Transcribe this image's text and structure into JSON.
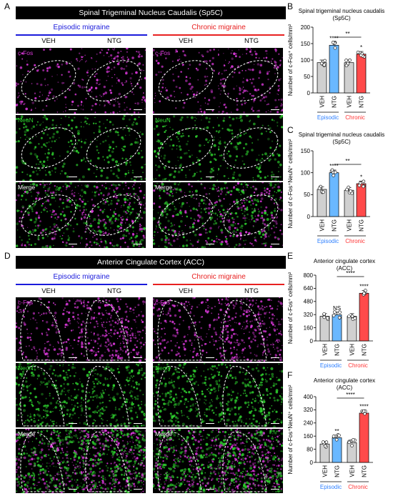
{
  "panels": {
    "A": "A",
    "B": "B",
    "C": "C",
    "D": "D",
    "E": "E",
    "F": "F"
  },
  "colors": {
    "blue": "#2f80ff",
    "red": "#ff3333",
    "episodic_line": "#1a1adb",
    "chronic_line": "#e82020",
    "cfos": "#d938d9",
    "neun": "#2ed12e",
    "veh_bar": "#d0d0d0",
    "ntg_episodic_bar": "#6ab8ff",
    "ntg_chronic_bar": "#ff4a4a"
  },
  "sectionA": {
    "title": "Spinal Trigeminal Nucleus Caudalis (Sp5C)",
    "groups": [
      "Episodic migraine",
      "Chronic migraine"
    ],
    "conditions": [
      "VEH",
      "NTG",
      "VEH",
      "NTG"
    ],
    "rows": [
      "c-Fos",
      "NeuN",
      "Merge"
    ]
  },
  "sectionD": {
    "title": "Anterior Cingulate Cortex (ACC)",
    "groups": [
      "Episodic migraine",
      "Chronic migraine"
    ],
    "conditions": [
      "VEH",
      "NTG",
      "VEH",
      "NTG"
    ],
    "rows": [
      "c-Fos",
      "NeuN",
      "Merge"
    ]
  },
  "chart_data": [
    {
      "panel": "B",
      "type": "bar",
      "title": "Spinal trigeminal nucleus caudalis\n(Sp5C)",
      "ylabel": "Number of c-Fos⁺ cells/mm²",
      "categories": [
        "VEH",
        "NTG",
        "VEH",
        "NTG"
      ],
      "groups": [
        "Episodic",
        "Chronic"
      ],
      "values": [
        92,
        145,
        92,
        118
      ],
      "ylim": [
        0,
        200
      ],
      "yticks": [
        "0",
        "50",
        "100",
        "150",
        "200"
      ],
      "sig_labels": [
        "",
        "****",
        "",
        "*"
      ],
      "bracket": "**"
    },
    {
      "panel": "C",
      "type": "bar",
      "title": "Spinal trigeminal nucleus caudalis\n(Sp5C)",
      "ylabel": "Number of c-Fos⁺NeuN⁺ cells/mm²",
      "categories": [
        "VEH",
        "NTG",
        "VEH",
        "NTG"
      ],
      "groups": [
        "Episodic",
        "Chronic"
      ],
      "values": [
        62,
        100,
        60,
        75
      ],
      "ylim": [
        0,
        150
      ],
      "yticks": [
        "0",
        "50",
        "100",
        "150"
      ],
      "sig_labels": [
        "",
        "****",
        "",
        "*"
      ],
      "bracket": "**"
    },
    {
      "panel": "E",
      "type": "bar",
      "title": "Anterior cingulate cortex\n(ACC)",
      "ylabel": "Number of c-Fos⁺ cells/mm²",
      "categories": [
        "VEH",
        "NTG",
        "VEH",
        "NTG"
      ],
      "groups": [
        "Episodic",
        "Chronic"
      ],
      "values": [
        300,
        318,
        300,
        580
      ],
      "ylim": [
        0,
        800
      ],
      "yticks": [
        "0",
        "160",
        "320",
        "480",
        "640",
        "800"
      ],
      "sig_labels": [
        "",
        "NS",
        "",
        "****"
      ],
      "bracket": "****"
    },
    {
      "panel": "F",
      "type": "bar",
      "title": "Anterior cingulate cortex\n(ACC)",
      "ylabel": "Number of c-Fos⁺NeuN⁺ cells/mm²",
      "categories": [
        "VEH",
        "NTG",
        "VEH",
        "NTG"
      ],
      "groups": [
        "Episodic",
        "Chronic"
      ],
      "values": [
        112,
        150,
        120,
        300
      ],
      "ylim": [
        0,
        400
      ],
      "yticks": [
        "0",
        "80",
        "160",
        "240",
        "320",
        "400"
      ],
      "sig_labels": [
        "",
        "**",
        "",
        "****"
      ],
      "bracket": "****"
    }
  ]
}
